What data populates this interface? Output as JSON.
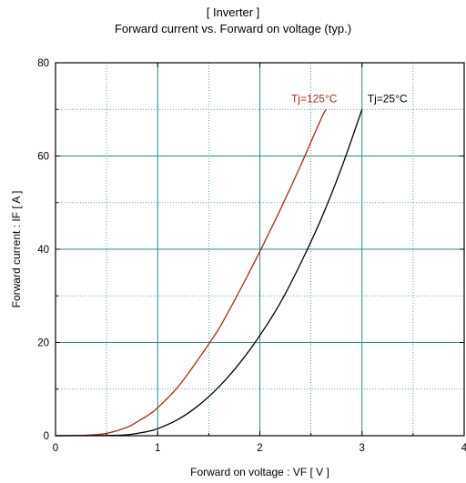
{
  "chart_data": {
    "type": "line",
    "title": "[ Inverter ]",
    "subtitle": "Forward current  vs.  Forward on voltage  (typ.)",
    "xlabel": "Forward on voltage  :  VF  [ V ]",
    "ylabel": "Forward current  :  IF  [ A ]",
    "xlim": [
      0,
      4
    ],
    "ylim": [
      0,
      80
    ],
    "xticks": [
      "0",
      "1",
      "2",
      "3",
      "4"
    ],
    "yticks": [
      "0",
      "20",
      "40",
      "60",
      "80"
    ],
    "grid": true,
    "series": [
      {
        "name": "Tj=125°C",
        "color": "#a52a1a",
        "x": [
          0,
          0.3,
          0.5,
          0.7,
          0.8,
          0.9,
          1.0,
          1.2,
          1.4,
          1.6,
          1.8,
          2.0,
          2.2,
          2.4,
          2.6,
          2.65
        ],
        "y": [
          0,
          0.1,
          0.5,
          1.8,
          3.0,
          4.3,
          6.0,
          10.5,
          16.5,
          23.0,
          31.0,
          39.5,
          48.5,
          58.0,
          68.0,
          70.0
        ]
      },
      {
        "name": "Tj=25°C",
        "color": "#000000",
        "x": [
          0,
          0.5,
          0.7,
          0.8,
          0.9,
          1.0,
          1.2,
          1.4,
          1.6,
          1.8,
          2.0,
          2.2,
          2.4,
          2.6,
          2.8,
          3.0
        ],
        "y": [
          0,
          0.05,
          0.2,
          0.5,
          0.9,
          1.5,
          3.5,
          6.5,
          10.5,
          15.5,
          21.5,
          28.5,
          37.0,
          46.5,
          57.5,
          70.0
        ]
      }
    ]
  }
}
